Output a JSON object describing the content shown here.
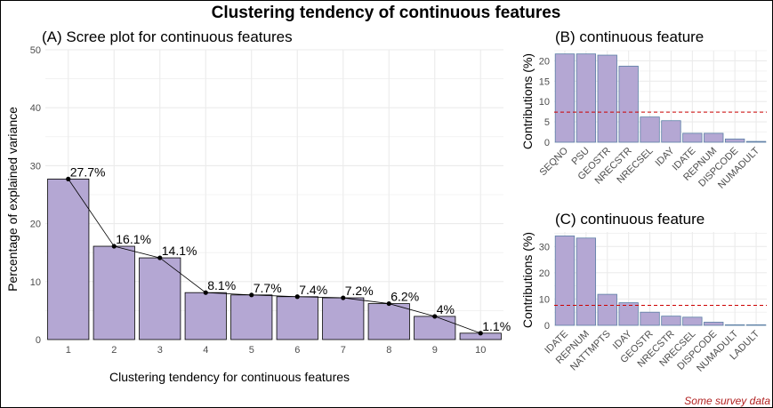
{
  "title": "Clustering tendency of continuous features",
  "caption": "Some survey data",
  "colors": {
    "bar_fill": "#b4a7d3",
    "bar_stroke_a": "#000000",
    "bar_stroke_bc": "#5b7fa6",
    "ref_line": "#cc0000",
    "grid": "#ebebeb"
  },
  "chart_data": [
    {
      "type": "bar",
      "title": "(A) Scree plot for continuous features",
      "xlabel": "Clustering tendency for continuous features",
      "ylabel": "Percentage of explained variance",
      "categories": [
        "1",
        "2",
        "3",
        "4",
        "5",
        "6",
        "7",
        "8",
        "9",
        "10"
      ],
      "values": [
        27.7,
        16.1,
        14.1,
        8.1,
        7.7,
        7.4,
        7.2,
        6.2,
        4.0,
        1.1
      ],
      "data_labels": [
        "27.7%",
        "16.1%",
        "14.1%",
        "8.1%",
        "7.7%",
        "7.4%",
        "7.2%",
        "6.2%",
        "4%",
        "1.1%"
      ],
      "yticks": [
        "0",
        "10",
        "20",
        "30",
        "40",
        "50"
      ],
      "ylim": [
        0,
        50
      ],
      "line_overlay": true,
      "grid": true
    },
    {
      "type": "bar",
      "title": "(B) continuous feature",
      "xlabel": "",
      "ylabel": "Contributions (%)",
      "categories": [
        "SEQNO",
        "PSU",
        "GEOSTR",
        "NRECSTR",
        "NRECSEL",
        "IDAY",
        "IDATE",
        "REPNUM",
        "DISPCODE",
        "NUMADULT"
      ],
      "values": [
        21.7,
        21.7,
        21.4,
        18.7,
        6.2,
        5.3,
        2.2,
        2.2,
        0.8,
        0.2
      ],
      "yticks": [
        "0",
        "5",
        "10",
        "15",
        "20"
      ],
      "ylim": [
        0,
        22.5
      ],
      "reference_line": 7.4,
      "grid": true
    },
    {
      "type": "bar",
      "title": "(C) continuous feature",
      "xlabel": "",
      "ylabel": "Contributions (%)",
      "categories": [
        "IDATE",
        "REPNUM",
        "NATTMPTS",
        "IDAY",
        "GEOSTR",
        "NRECSTR",
        "NRECSEL",
        "DISPCODE",
        "NUMADULT",
        "LADULT"
      ],
      "values": [
        34.0,
        33.2,
        11.8,
        8.6,
        5.0,
        3.5,
        3.1,
        1.2,
        0.2,
        0.2
      ],
      "yticks": [
        "0",
        "10",
        "20",
        "30"
      ],
      "ylim": [
        0,
        35.5
      ],
      "reference_line": 7.6,
      "grid": true
    }
  ]
}
